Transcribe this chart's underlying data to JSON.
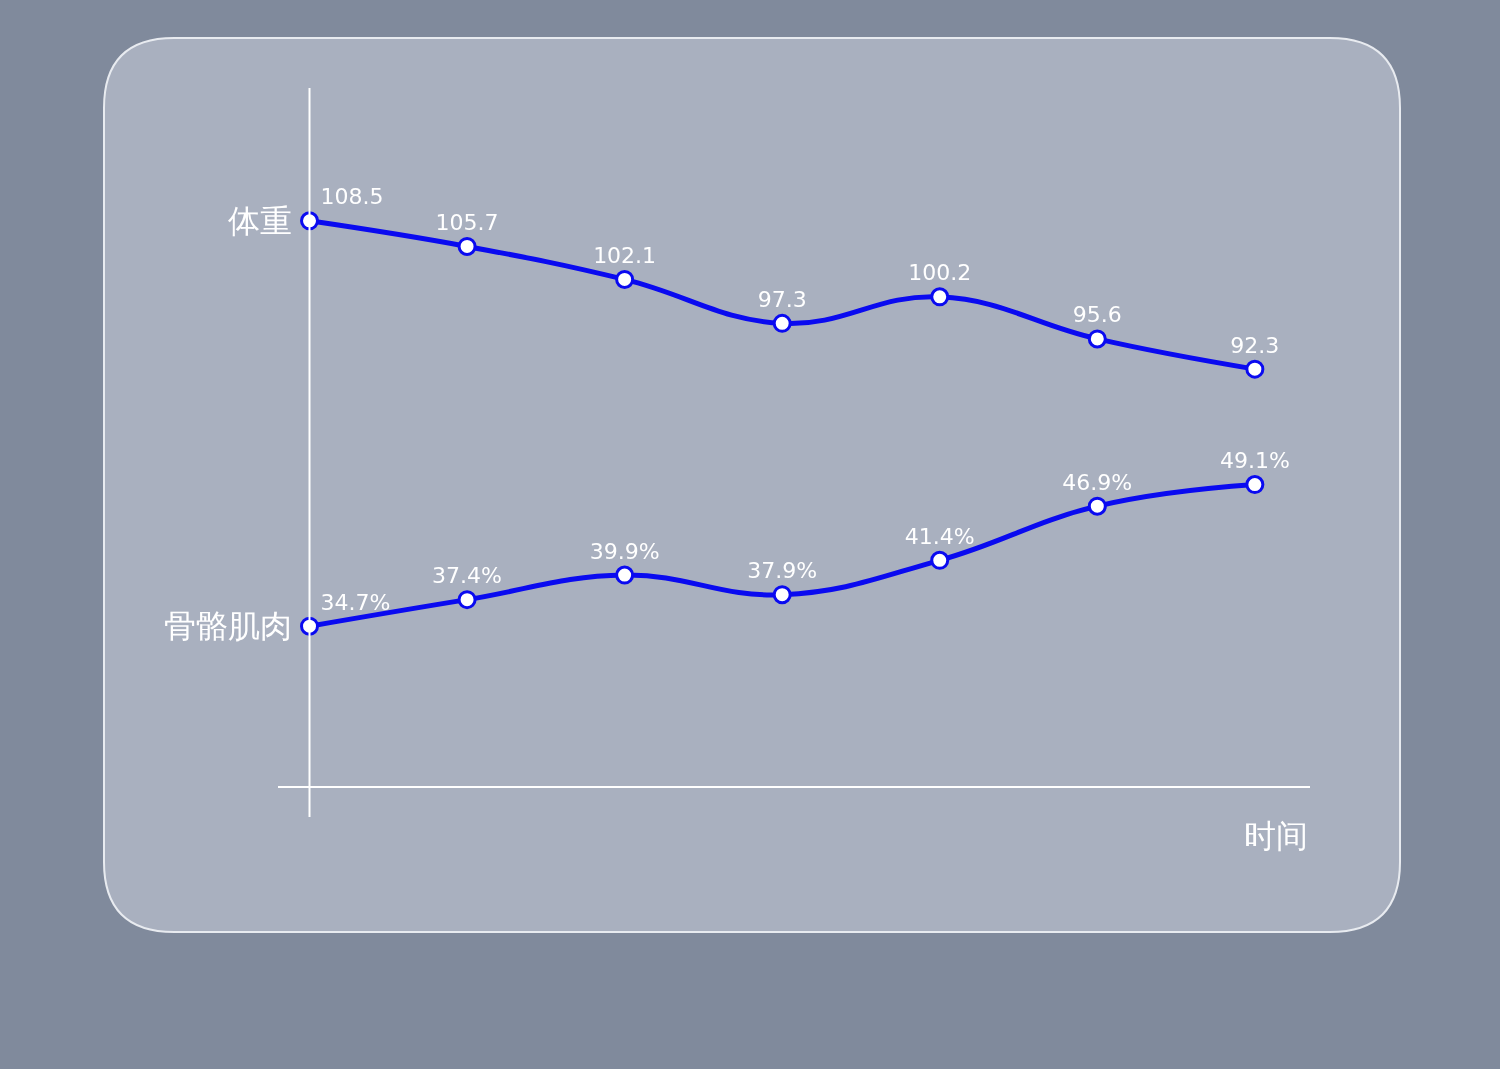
{
  "chart_data": [
    {
      "type": "line",
      "categories": [
        null,
        null,
        null,
        null,
        null,
        null,
        null
      ],
      "series": [
        {
          "name": "体重",
          "color": "#0a0af0",
          "values": [
            108.5,
            105.7,
            102.1,
            97.3,
            100.2,
            95.6,
            92.3
          ],
          "value_labels": [
            "108.5",
            "105.7",
            "102.1",
            "97.3",
            "100.2",
            "95.6",
            "92.3"
          ]
        }
      ],
      "tick_labels": false,
      "marker": "circle",
      "line_style": "solid"
    },
    {
      "type": "line",
      "xlabel": "时间",
      "categories": [
        null,
        null,
        null,
        null,
        null,
        null,
        null
      ],
      "series": [
        {
          "name": "骨骼肌肉",
          "color": "#0a0af0",
          "values": [
            34.7,
            37.4,
            39.9,
            37.9,
            41.4,
            46.9,
            49.1
          ],
          "value_labels": [
            "34.7%",
            "37.4%",
            "39.9%",
            "37.9%",
            "41.4%",
            "46.9%",
            "49.1%"
          ]
        }
      ],
      "tick_labels": false,
      "marker": "circle",
      "line_style": "solid"
    }
  ]
}
